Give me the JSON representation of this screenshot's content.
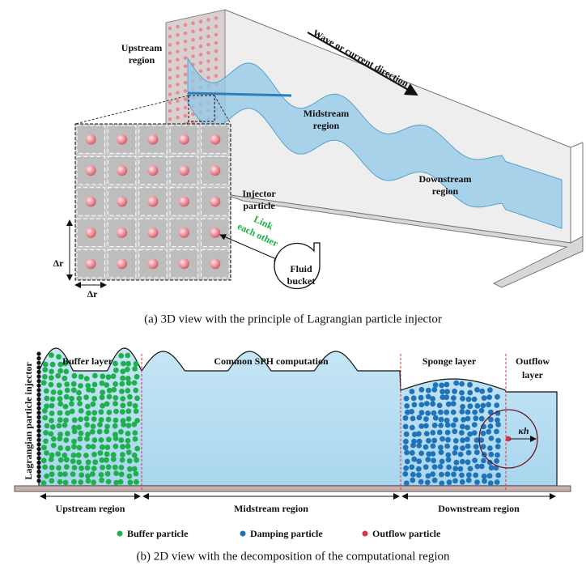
{
  "panel_a": {
    "upstream_label": [
      "Upstream",
      "region"
    ],
    "direction_label": "Wave or current direction",
    "midstream_label": [
      "Midstream",
      "region"
    ],
    "downstream_label": [
      "Downstream",
      "region"
    ],
    "injector_label": [
      "Injector",
      "particle"
    ],
    "link_label": [
      "Link",
      "each other"
    ],
    "bucket_label": [
      "Fluid",
      "bucket"
    ],
    "spacing_vertical": "Δr",
    "spacing_horizontal": "Δr",
    "caption": "(a) 3D view with the principle of Lagrangian particle injector"
  },
  "panel_b": {
    "injector_label": "Lagrangian particle injector",
    "buffer_layer": "Buffer layer",
    "common_label": "Common SPH computation",
    "sponge_layer": "Sponge layer",
    "outflow_layer": [
      "Outflow",
      "layer"
    ],
    "kappa_h": "κh",
    "regions": [
      "Upstream region",
      "Midstream region",
      "Downstream region"
    ],
    "legend": [
      {
        "name": "Buffer particle",
        "color": "#1fb04b"
      },
      {
        "name": "Damping particle",
        "color": "#1f73b8"
      },
      {
        "name": "Outflow particle",
        "color": "#d6334a"
      }
    ],
    "caption": "(b) 2D view with the decomposition of the computational region"
  }
}
